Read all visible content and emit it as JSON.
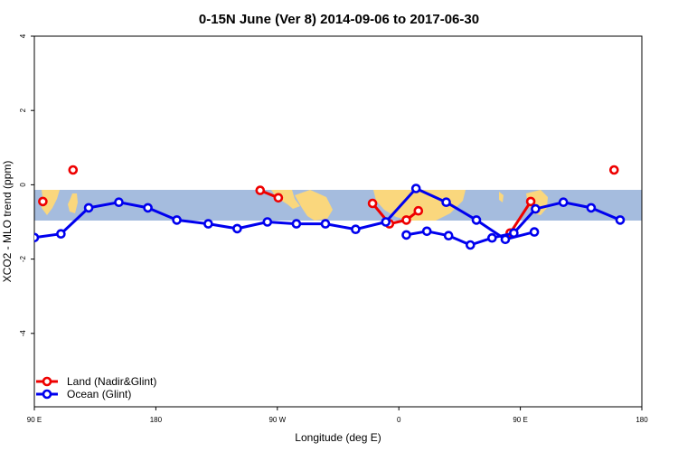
{
  "chart_data": {
    "type": "line",
    "title": "0-15N June (Ver 8)   2014-09-06 to 2017-06-30",
    "xlabel": "Longitude (deg E)",
    "ylabel": "XCO2 - MLO trend (ppm)",
    "xlim": [
      90,
      450
    ],
    "ylim": [
      -6,
      4
    ],
    "x_ticks": [
      {
        "value": 90,
        "label": "90 E"
      },
      {
        "value": 180,
        "label": "180"
      },
      {
        "value": 270,
        "label": "90 W"
      },
      {
        "value": 360,
        "label": "0"
      },
      {
        "value": 450,
        "label": "90 E"
      },
      {
        "value": 540,
        "label": "180"
      }
    ],
    "y_ticks": [
      {
        "value": 4,
        "label": "4"
      },
      {
        "value": 2,
        "label": "2"
      },
      {
        "value": 0,
        "label": "0"
      },
      {
        "value": -2,
        "label": "-2"
      },
      {
        "value": -4,
        "label": "-4"
      }
    ],
    "map_band": {
      "ymin": -0.95,
      "ymax": -0.15,
      "ocean_color": "#a5bcde",
      "land_color": "#fad77d"
    },
    "legend": {
      "position": "bottom-left"
    },
    "series": [
      {
        "name": "Land (Nadir&Glint)",
        "color": "#ee0000",
        "segments": [
          [
            {
              "x": 97,
              "y": -0.45
            }
          ],
          [
            {
              "x": 122,
              "y": 0.4
            }
          ],
          [
            {
              "x": 277,
              "y": -0.15
            },
            {
              "x": 292,
              "y": -0.35
            }
          ],
          [
            {
              "x": 370,
              "y": -0.5
            },
            {
              "x": 384,
              "y": -1.05
            },
            {
              "x": 398,
              "y": -0.95
            },
            {
              "x": 408,
              "y": -0.7
            }
          ],
          [
            {
              "x": 484,
              "y": -1.3
            },
            {
              "x": 501,
              "y": -0.45
            }
          ],
          [
            {
              "x": 570,
              "y": 0.4
            }
          ]
        ]
      },
      {
        "name": "Ocean (Glint)",
        "color": "#0000ee",
        "segments": [
          [
            {
              "x": 90,
              "y": -1.42
            },
            {
              "x": 112,
              "y": -1.32
            },
            {
              "x": 135,
              "y": -0.62
            },
            {
              "x": 160,
              "y": -0.47
            },
            {
              "x": 184,
              "y": -0.62
            },
            {
              "x": 208,
              "y": -0.95
            },
            {
              "x": 234,
              "y": -1.05
            },
            {
              "x": 258,
              "y": -1.18
            },
            {
              "x": 283,
              "y": -1.0
            },
            {
              "x": 307,
              "y": -1.05
            },
            {
              "x": 331,
              "y": -1.05
            },
            {
              "x": 356,
              "y": -1.2
            },
            {
              "x": 381,
              "y": -1.0
            },
            {
              "x": 406,
              "y": -0.1
            },
            {
              "x": 431,
              "y": -0.47
            },
            {
              "x": 456,
              "y": -0.95
            },
            {
              "x": 480,
              "y": -1.47
            },
            {
              "x": 504,
              "y": -1.27
            }
          ],
          [
            {
              "x": 398,
              "y": -1.35
            },
            {
              "x": 415,
              "y": -1.25
            },
            {
              "x": 433,
              "y": -1.37
            },
            {
              "x": 451,
              "y": -1.62
            },
            {
              "x": 469,
              "y": -1.43
            },
            {
              "x": 487,
              "y": -1.3
            },
            {
              "x": 505,
              "y": -0.65
            },
            {
              "x": 528,
              "y": -0.47
            },
            {
              "x": 551,
              "y": -0.62
            },
            {
              "x": 575,
              "y": -0.95
            }
          ]
        ]
      }
    ]
  }
}
